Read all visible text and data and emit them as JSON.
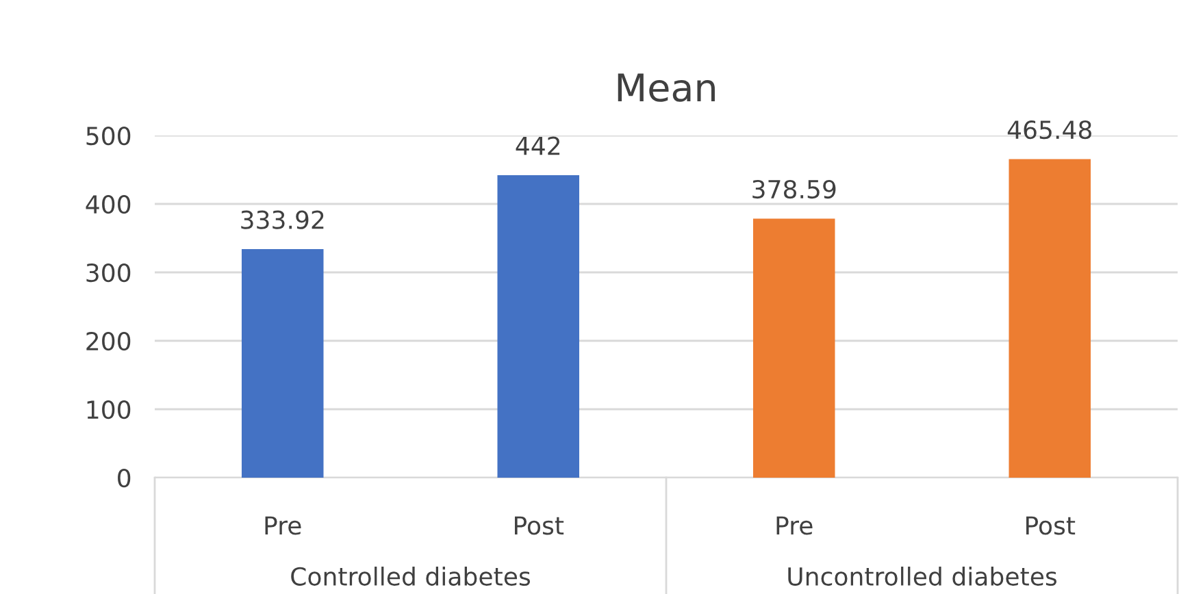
{
  "chart_data": {
    "type": "bar",
    "title": "Mean",
    "categories": [
      "Pre",
      "Post",
      "Pre",
      "Post"
    ],
    "values": [
      333.92,
      442,
      378.59,
      465.48
    ],
    "colors": [
      "#4472c4",
      "#4472c4",
      "#ed7d31",
      "#ed7d31"
    ],
    "annotations": [
      "Controlled diabetes",
      "Uncontrolled diabetes"
    ],
    "ylim": [
      0,
      500
    ],
    "yticks": [
      0,
      100,
      200,
      300,
      400,
      500
    ],
    "grid": "y",
    "data_labels": true
  }
}
